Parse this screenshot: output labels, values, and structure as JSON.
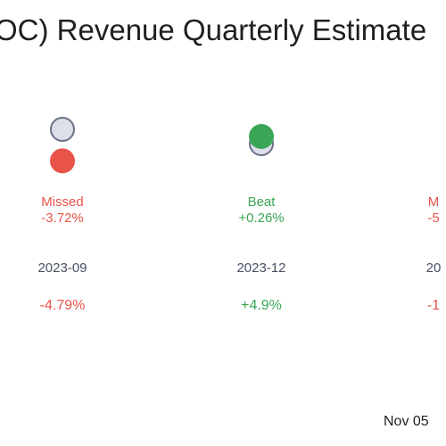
{
  "title": "OC) Revenue Quarterly Estimate",
  "colors": {
    "miss": "#e8544a",
    "beat": "#3aa655",
    "estimate_fill": "#dde0e8",
    "estimate_stroke": "#6b7088",
    "period_text": "#4a4f63"
  },
  "chart_data": {
    "type": "scatter",
    "title": "OC) Revenue Quarterly Estimate",
    "legend": "none",
    "grid": false,
    "quarters": [
      {
        "period": "2023-09",
        "status": "Missed",
        "surprise": "-3.72%",
        "surprise_pct": -3.72,
        "growth": "-4.79%",
        "growth_pct": -4.79
      },
      {
        "period": "2023-12",
        "status": "Beat",
        "surprise": "+0.26%",
        "surprise_pct": 0.26,
        "growth": "+4.9%",
        "growth_pct": 4.9
      },
      {
        "period": "20",
        "status": "M",
        "surprise": "-5",
        "growth": "-1"
      }
    ]
  },
  "footer": {
    "date": "Nov 05"
  }
}
